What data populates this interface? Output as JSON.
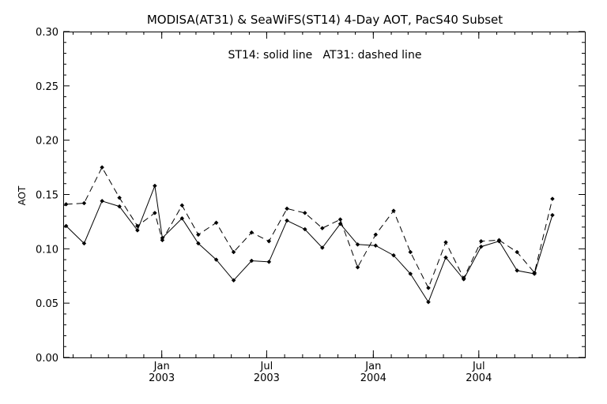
{
  "chart_data": {
    "type": "line",
    "title": "MODISA(AT31) & SeaWiFS(ST14) 4-Day AOT, PacS40 Subset",
    "annotation": "ST14: solid line   AT31: dashed line",
    "ylabel": "AOT",
    "xlabel": "",
    "ylim": [
      0.0,
      0.3
    ],
    "y_ticks": [
      "0.00",
      "0.05",
      "0.10",
      "0.15",
      "0.20",
      "0.25",
      "0.30"
    ],
    "x_tick_labels": [
      {
        "month": "Jan",
        "year": "2003"
      },
      {
        "month": "Jul",
        "year": "2003"
      },
      {
        "month": "Jan",
        "year": "2004"
      },
      {
        "month": "Jul",
        "year": "2004"
      }
    ],
    "grid": false,
    "x": [
      "2002-07-20",
      "2002-08-20",
      "2002-09-20",
      "2002-10-20",
      "2002-11-20",
      "2002-12-20",
      "2003-01-02",
      "2003-02-05",
      "2003-03-05",
      "2003-04-05",
      "2003-05-05",
      "2003-06-05",
      "2003-07-05",
      "2003-08-05",
      "2003-09-05",
      "2003-10-05",
      "2003-11-05",
      "2003-12-05",
      "2004-01-05",
      "2004-02-05",
      "2004-03-05",
      "2004-04-05",
      "2004-05-05",
      "2004-06-05",
      "2004-07-05",
      "2004-08-05",
      "2004-09-05",
      "2004-10-05",
      "2004-11-05",
      "2004-12-10"
    ],
    "series": [
      {
        "name": "ST14",
        "style": "solid",
        "values": [
          0.121,
          0.105,
          0.144,
          0.139,
          0.117,
          0.158,
          0.11,
          0.128,
          0.105,
          0.09,
          0.071,
          0.089,
          0.088,
          0.126,
          0.118,
          0.101,
          0.123,
          0.104,
          0.103,
          0.094,
          0.077,
          0.051,
          0.092,
          0.072,
          0.102,
          0.107,
          0.08,
          0.077,
          0.131,
          null
        ]
      },
      {
        "name": "AT31",
        "style": "dashed",
        "values": [
          0.141,
          0.142,
          0.175,
          0.147,
          0.121,
          0.133,
          0.108,
          0.14,
          0.113,
          0.124,
          0.097,
          0.115,
          0.107,
          0.137,
          0.133,
          0.119,
          0.127,
          0.083,
          0.113,
          0.135,
          0.097,
          0.064,
          0.106,
          0.073,
          0.107,
          0.108,
          0.097,
          0.078,
          0.146,
          null
        ]
      }
    ]
  }
}
